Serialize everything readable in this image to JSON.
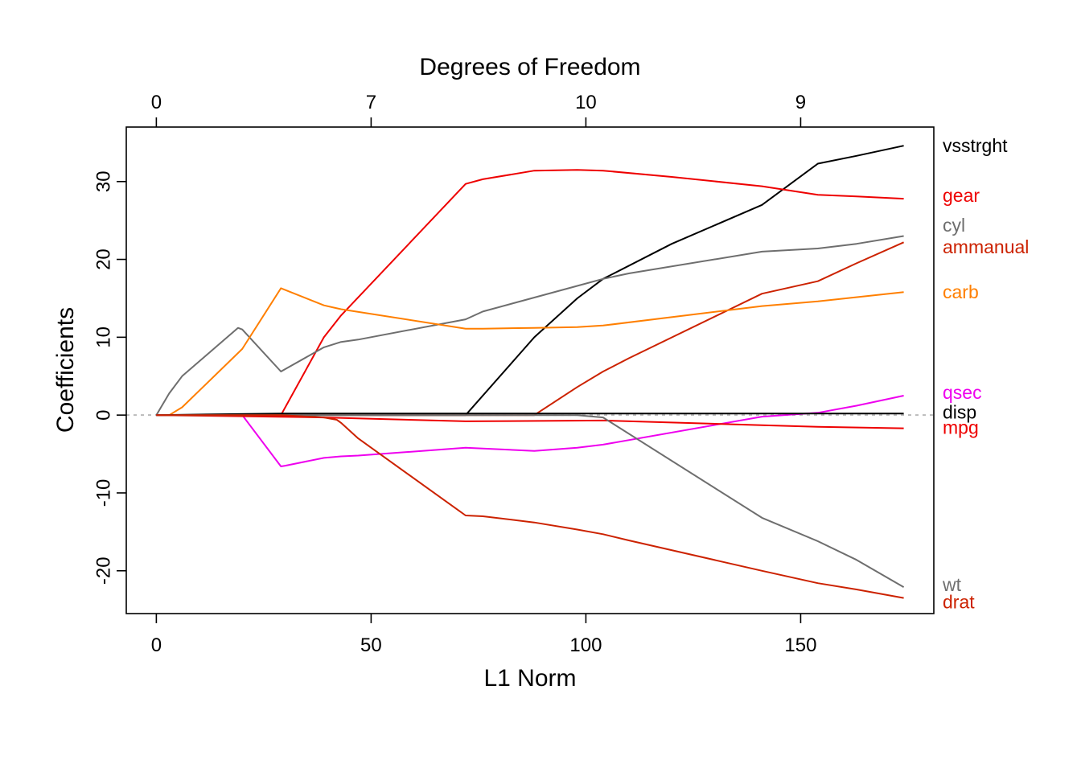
{
  "chart_data": {
    "type": "line",
    "xlabel": "L1 Norm",
    "ylabel": "Coefficients",
    "top_axis_title": "Degrees of Freedom",
    "xlim": [
      -7,
      181
    ],
    "ylim": [
      -25.5,
      37
    ],
    "x_ticks": [
      0,
      50,
      100,
      150
    ],
    "y_ticks": [
      -20,
      -10,
      0,
      10,
      20,
      30
    ],
    "top_ticks": [
      {
        "x": 0,
        "label": "0"
      },
      {
        "x": 50,
        "label": "7"
      },
      {
        "x": 100,
        "label": "10"
      },
      {
        "x": 150,
        "label": "9"
      }
    ],
    "zero_line": {
      "y": 0,
      "style": "dotted",
      "color": "#bbbbbb"
    },
    "grid": false,
    "series": [
      {
        "name": "vsstrght",
        "color": "#000000",
        "x": [
          0,
          72,
          88,
          98,
          104,
          120,
          141,
          154,
          163,
          174
        ],
        "y": [
          0,
          0,
          10,
          15,
          17.5,
          22,
          27,
          32.3,
          33.3,
          34.6
        ]
      },
      {
        "name": "gear",
        "color": "#ee0000",
        "x": [
          0,
          29,
          39,
          43,
          72,
          76,
          88,
          98,
          104,
          120,
          141,
          154,
          163,
          174
        ],
        "y": [
          0,
          0,
          10,
          12.8,
          29.7,
          30.3,
          31.4,
          31.5,
          31.4,
          30.6,
          29.4,
          28.3,
          28.1,
          27.8
        ]
      },
      {
        "name": "cyl",
        "color": "#6e6e6e",
        "x": [
          0,
          3,
          6,
          19,
          20,
          29,
          30,
          39,
          43,
          47,
          72,
          76,
          88,
          98,
          104,
          110,
          141,
          154,
          163,
          174
        ],
        "y": [
          0,
          2.8,
          5,
          11.2,
          11,
          5.6,
          5.9,
          8.7,
          9.4,
          9.7,
          12.3,
          13.3,
          15.1,
          16.6,
          17.5,
          18.2,
          21,
          21.4,
          22,
          23
        ]
      },
      {
        "name": "ammanual",
        "color": "#cc2200",
        "x": [
          0,
          88,
          98,
          104,
          110,
          141,
          154,
          163,
          174
        ],
        "y": [
          0,
          0,
          3.6,
          5.6,
          7.3,
          15.6,
          17.2,
          19.5,
          22.2
        ]
      },
      {
        "name": "carb",
        "color": "#ff7f00",
        "x": [
          0,
          3,
          6,
          20,
          29,
          39,
          43,
          72,
          76,
          88,
          98,
          104,
          141,
          154,
          174
        ],
        "y": [
          0,
          0,
          1,
          8.5,
          16.3,
          14.1,
          13.6,
          11.1,
          11.1,
          11.2,
          11.3,
          11.5,
          14,
          14.6,
          15.8
        ]
      },
      {
        "name": "qsec",
        "color": "#ee00ee",
        "x": [
          0,
          20,
          29,
          30,
          39,
          43,
          47,
          72,
          76,
          88,
          98,
          104,
          141,
          154,
          163,
          174
        ],
        "y": [
          0,
          0,
          -6.6,
          -6.5,
          -5.5,
          -5.3,
          -5.2,
          -4.2,
          -4.3,
          -4.6,
          -4.2,
          -3.8,
          -0.2,
          0.3,
          1.2,
          2.5
        ]
      },
      {
        "name": "disp",
        "color": "#000000",
        "x": [
          0,
          29,
          174
        ],
        "y": [
          0,
          0.2,
          0.2
        ]
      },
      {
        "name": "mpg",
        "color": "#ee0000",
        "x": [
          0,
          39,
          72,
          104,
          141,
          154,
          174
        ],
        "y": [
          0,
          -0.3,
          -0.8,
          -0.7,
          -1.3,
          -1.5,
          -1.7
        ]
      },
      {
        "name": "wt",
        "color": "#6e6e6e",
        "x": [
          0,
          98,
          104,
          141,
          154,
          163,
          174
        ],
        "y": [
          0,
          0,
          -0.3,
          -13.2,
          -16.2,
          -18.6,
          -22.1
        ]
      },
      {
        "name": "drat",
        "color": "#cc2200",
        "x": [
          0,
          29,
          39,
          42,
          43,
          47,
          72,
          76,
          88,
          98,
          104,
          110,
          141,
          154,
          163,
          174
        ],
        "y": [
          0,
          0,
          -0.3,
          -0.6,
          -1,
          -3,
          -12.9,
          -13,
          -13.8,
          -14.7,
          -15.3,
          -16.1,
          -20,
          -21.6,
          -22.4,
          -23.5
        ]
      }
    ],
    "end_labels": [
      {
        "text": "vsstrght",
        "color": "#000000",
        "y": 34.6
      },
      {
        "text": "gear",
        "color": "#ee0000",
        "y": 28.2
      },
      {
        "text": "cyl",
        "color": "#6e6e6e",
        "y": 24.4
      },
      {
        "text": "ammanual",
        "color": "#cc2200",
        "y": 21.6
      },
      {
        "text": "carb",
        "color": "#ff7f00",
        "y": 15.8
      },
      {
        "text": "qsec",
        "color": "#ee00ee",
        "y": 2.9
      },
      {
        "text": "disp",
        "color": "#000000",
        "y": 0.4
      },
      {
        "text": "mpg",
        "color": "#ee0000",
        "y": -1.6
      },
      {
        "text": "wt",
        "color": "#6e6e6e",
        "y": -21.8
      },
      {
        "text": "drat",
        "color": "#cc2200",
        "y": -24
      }
    ]
  }
}
